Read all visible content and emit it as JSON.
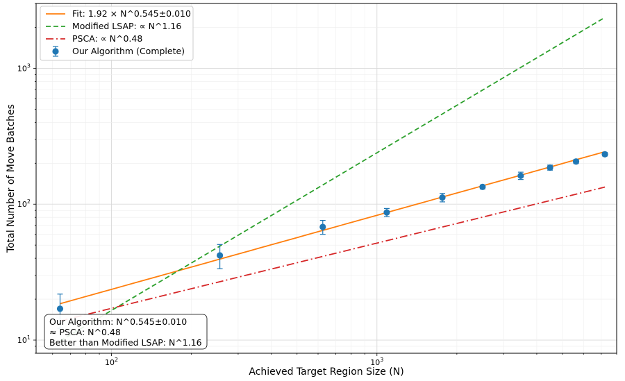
{
  "chart_data": {
    "type": "scatter",
    "xscale": "log",
    "yscale": "log",
    "xlabel": "Achieved Target Region Size (N)",
    "ylabel": "Total Number of Move Batches",
    "xlim": [
      52,
      8000
    ],
    "ylim": [
      8,
      3000
    ],
    "grid": true,
    "legend": "top-left",
    "x_ticks": [
      {
        "value": 100,
        "label": "10",
        "exp": "2"
      },
      {
        "value": 1000,
        "label": "10",
        "exp": "3"
      }
    ],
    "y_ticks": [
      {
        "value": 10,
        "label": "10",
        "exp": "1"
      },
      {
        "value": 100,
        "label": "10",
        "exp": "2"
      },
      {
        "value": 1000,
        "label": "10",
        "exp": "3"
      }
    ],
    "measured": {
      "name": "Our Algorithm (Complete)",
      "color": "#1f77b4",
      "points": [
        {
          "x": 64,
          "y": 17,
          "err": 4.8
        },
        {
          "x": 256,
          "y": 42,
          "err": 8.5
        },
        {
          "x": 625,
          "y": 68,
          "err": 8
        },
        {
          "x": 1089,
          "y": 87,
          "err": 6
        },
        {
          "x": 1764,
          "y": 112,
          "err": 8
        },
        {
          "x": 2500,
          "y": 134,
          "err": 4.5
        },
        {
          "x": 3481,
          "y": 162,
          "err": 10
        },
        {
          "x": 4489,
          "y": 186,
          "err": 8
        },
        {
          "x": 5625,
          "y": 206,
          "err": 7
        },
        {
          "x": 7225,
          "y": 233,
          "err": 7
        }
      ]
    },
    "lines": [
      {
        "name": "Fit: 1.92 × N^0.545±0.010",
        "color": "#ff7f0e",
        "dash": "",
        "coef": 1.92,
        "exp": 0.545,
        "x0": 64,
        "x1": 7225
      },
      {
        "name": "Modified LSAP: ∝ N^1.16",
        "color": "#2ca02c",
        "dash": "7,4",
        "coef": 0.0791,
        "exp": 1.16,
        "x0": 64,
        "x1": 7225
      },
      {
        "name": "PSCA: ∝ N^0.48",
        "color": "#d62728",
        "dash": "11,4,2,4",
        "coef": 1.878,
        "exp": 0.48,
        "x0": 64,
        "x1": 7225
      }
    ],
    "annotation": [
      "Our Algorithm: N^0.545±0.010",
      "≈ PSCA: N^0.48",
      "Better than Modified LSAP: N^1.16"
    ]
  }
}
